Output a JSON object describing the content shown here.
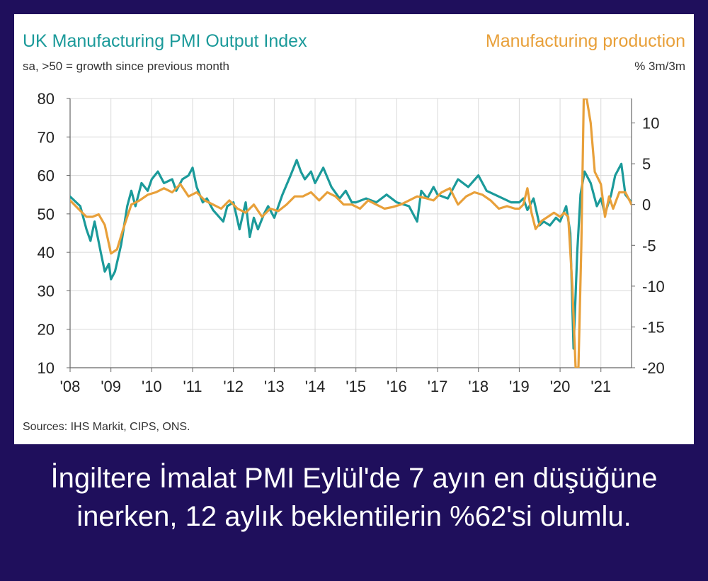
{
  "header": {
    "left_title": "UK Manufacturing PMI Output Index",
    "left_subtitle": "sa, >50 = growth since previous month",
    "right_title": "Manufacturing production",
    "right_subtitle": "% 3m/3m"
  },
  "sources": "Sources: IHS Markit, CIPS, ONS.",
  "caption": {
    "line1": "İngiltere İmalat PMI Eylül'de 7 ayın en düşüğüne",
    "line2": "inerken, 12 aylık beklentilerin %62'si olumlu."
  },
  "colors": {
    "pmi": "#1b9a9a",
    "production": "#e8a03a",
    "axis": "#666666",
    "grid": "#d9d9d9",
    "background": "#1f0f5c"
  },
  "chart_data": {
    "type": "line",
    "x_ticks": [
      "'08",
      "'09",
      "'10",
      "'11",
      "'12",
      "'13",
      "'14",
      "'15",
      "'16",
      "'17",
      "'18",
      "'19",
      "'20",
      "'21"
    ],
    "left_axis": {
      "ylim": [
        10,
        80
      ],
      "ticks": [
        10,
        20,
        30,
        40,
        50,
        60,
        70,
        80
      ]
    },
    "right_axis": {
      "ylim": [
        -20,
        13
      ],
      "ticks": [
        -20,
        -15,
        -10,
        -5,
        0,
        5,
        10
      ]
    },
    "grid": true,
    "series": [
      {
        "name": "UK Manufacturing PMI Output Index",
        "axis": "left",
        "x": [
          2008.0,
          2008.25,
          2008.4,
          2008.5,
          2008.6,
          2008.75,
          2008.85,
          2008.95,
          2009.0,
          2009.1,
          2009.25,
          2009.4,
          2009.5,
          2009.6,
          2009.75,
          2009.9,
          2010.0,
          2010.15,
          2010.3,
          2010.5,
          2010.6,
          2010.75,
          2010.9,
          2011.0,
          2011.1,
          2011.25,
          2011.35,
          2011.5,
          2011.75,
          2011.85,
          2012.0,
          2012.15,
          2012.3,
          2012.4,
          2012.5,
          2012.6,
          2012.75,
          2012.85,
          2013.0,
          2013.2,
          2013.4,
          2013.55,
          2013.65,
          2013.75,
          2013.9,
          2014.0,
          2014.2,
          2014.4,
          2014.6,
          2014.75,
          2014.9,
          2015.0,
          2015.25,
          2015.5,
          2015.75,
          2016.0,
          2016.3,
          2016.5,
          2016.6,
          2016.75,
          2016.9,
          2017.0,
          2017.25,
          2017.5,
          2017.75,
          2018.0,
          2018.2,
          2018.4,
          2018.6,
          2018.8,
          2019.0,
          2019.1,
          2019.2,
          2019.35,
          2019.5,
          2019.6,
          2019.75,
          2019.9,
          2020.0,
          2020.15,
          2020.25,
          2020.33,
          2020.42,
          2020.5,
          2020.6,
          2020.75,
          2020.9,
          2021.0,
          2021.1,
          2021.25,
          2021.35,
          2021.5,
          2021.6,
          2021.75
        ],
        "values": [
          54.5,
          52,
          46,
          43,
          48,
          40,
          35,
          37,
          33,
          35,
          42,
          52,
          56,
          52,
          58,
          56,
          59,
          61,
          58,
          59,
          56,
          59,
          60,
          62,
          57,
          53,
          54,
          51,
          48,
          52,
          53,
          46,
          53,
          44,
          49,
          46,
          50,
          52,
          49,
          55,
          60,
          64,
          61,
          59,
          61,
          58,
          62,
          57,
          54,
          56,
          53,
          53,
          54,
          53,
          55,
          53,
          52,
          48,
          56,
          54,
          57,
          55,
          54,
          59,
          57,
          60,
          56,
          55,
          54,
          53,
          53,
          54,
          51,
          54,
          47,
          48,
          47,
          49,
          48,
          52,
          45,
          15,
          40,
          55,
          61,
          58,
          52,
          54,
          50,
          55,
          60,
          63,
          55,
          53
        ]
      },
      {
        "name": "Manufacturing production",
        "axis": "right",
        "x": [
          2008.0,
          2008.2,
          2008.4,
          2008.55,
          2008.7,
          2008.85,
          2009.0,
          2009.15,
          2009.3,
          2009.5,
          2009.7,
          2009.9,
          2010.1,
          2010.3,
          2010.5,
          2010.7,
          2010.9,
          2011.1,
          2011.3,
          2011.5,
          2011.7,
          2011.9,
          2012.1,
          2012.3,
          2012.5,
          2012.7,
          2012.9,
          2013.1,
          2013.3,
          2013.5,
          2013.7,
          2013.9,
          2014.1,
          2014.3,
          2014.5,
          2014.7,
          2014.9,
          2015.1,
          2015.3,
          2015.5,
          2015.7,
          2015.9,
          2016.1,
          2016.3,
          2016.5,
          2016.7,
          2016.9,
          2017.1,
          2017.3,
          2017.5,
          2017.7,
          2017.9,
          2018.1,
          2018.3,
          2018.5,
          2018.7,
          2018.9,
          2019.0,
          2019.1,
          2019.2,
          2019.3,
          2019.4,
          2019.55,
          2019.7,
          2019.85,
          2020.0,
          2020.1,
          2020.2,
          2020.3,
          2020.38,
          2020.45,
          2020.52,
          2020.58,
          2020.65,
          2020.75,
          2020.85,
          2021.0,
          2021.1,
          2021.2,
          2021.3,
          2021.45,
          2021.6,
          2021.75
        ],
        "values": [
          0.5,
          -0.5,
          -1.5,
          -1.5,
          -1.2,
          -2.5,
          -6.0,
          -5.5,
          -3.0,
          0.0,
          0.5,
          1.2,
          1.5,
          2.0,
          1.5,
          2.5,
          1.0,
          1.5,
          0.5,
          0.0,
          -0.5,
          0.5,
          -0.5,
          -1.0,
          0.0,
          -1.5,
          -0.5,
          -0.8,
          0.0,
          1.0,
          1.0,
          1.5,
          0.5,
          1.5,
          1.0,
          0.0,
          0.0,
          -0.5,
          0.5,
          0.0,
          -0.5,
          -0.3,
          0.0,
          0.5,
          1.0,
          0.8,
          0.5,
          1.5,
          2.0,
          0.0,
          1.0,
          1.5,
          1.2,
          0.5,
          -0.5,
          -0.2,
          -0.5,
          -0.5,
          0.0,
          2.0,
          -1.0,
          -3.0,
          -2.0,
          -1.5,
          -1.0,
          -1.5,
          -1.0,
          -1.5,
          -10.0,
          -20.0,
          -20.0,
          -5.0,
          13.0,
          13.0,
          10.0,
          4.0,
          2.5,
          -1.5,
          1.0,
          -0.5,
          1.5,
          1.5,
          0.0
        ]
      }
    ]
  }
}
